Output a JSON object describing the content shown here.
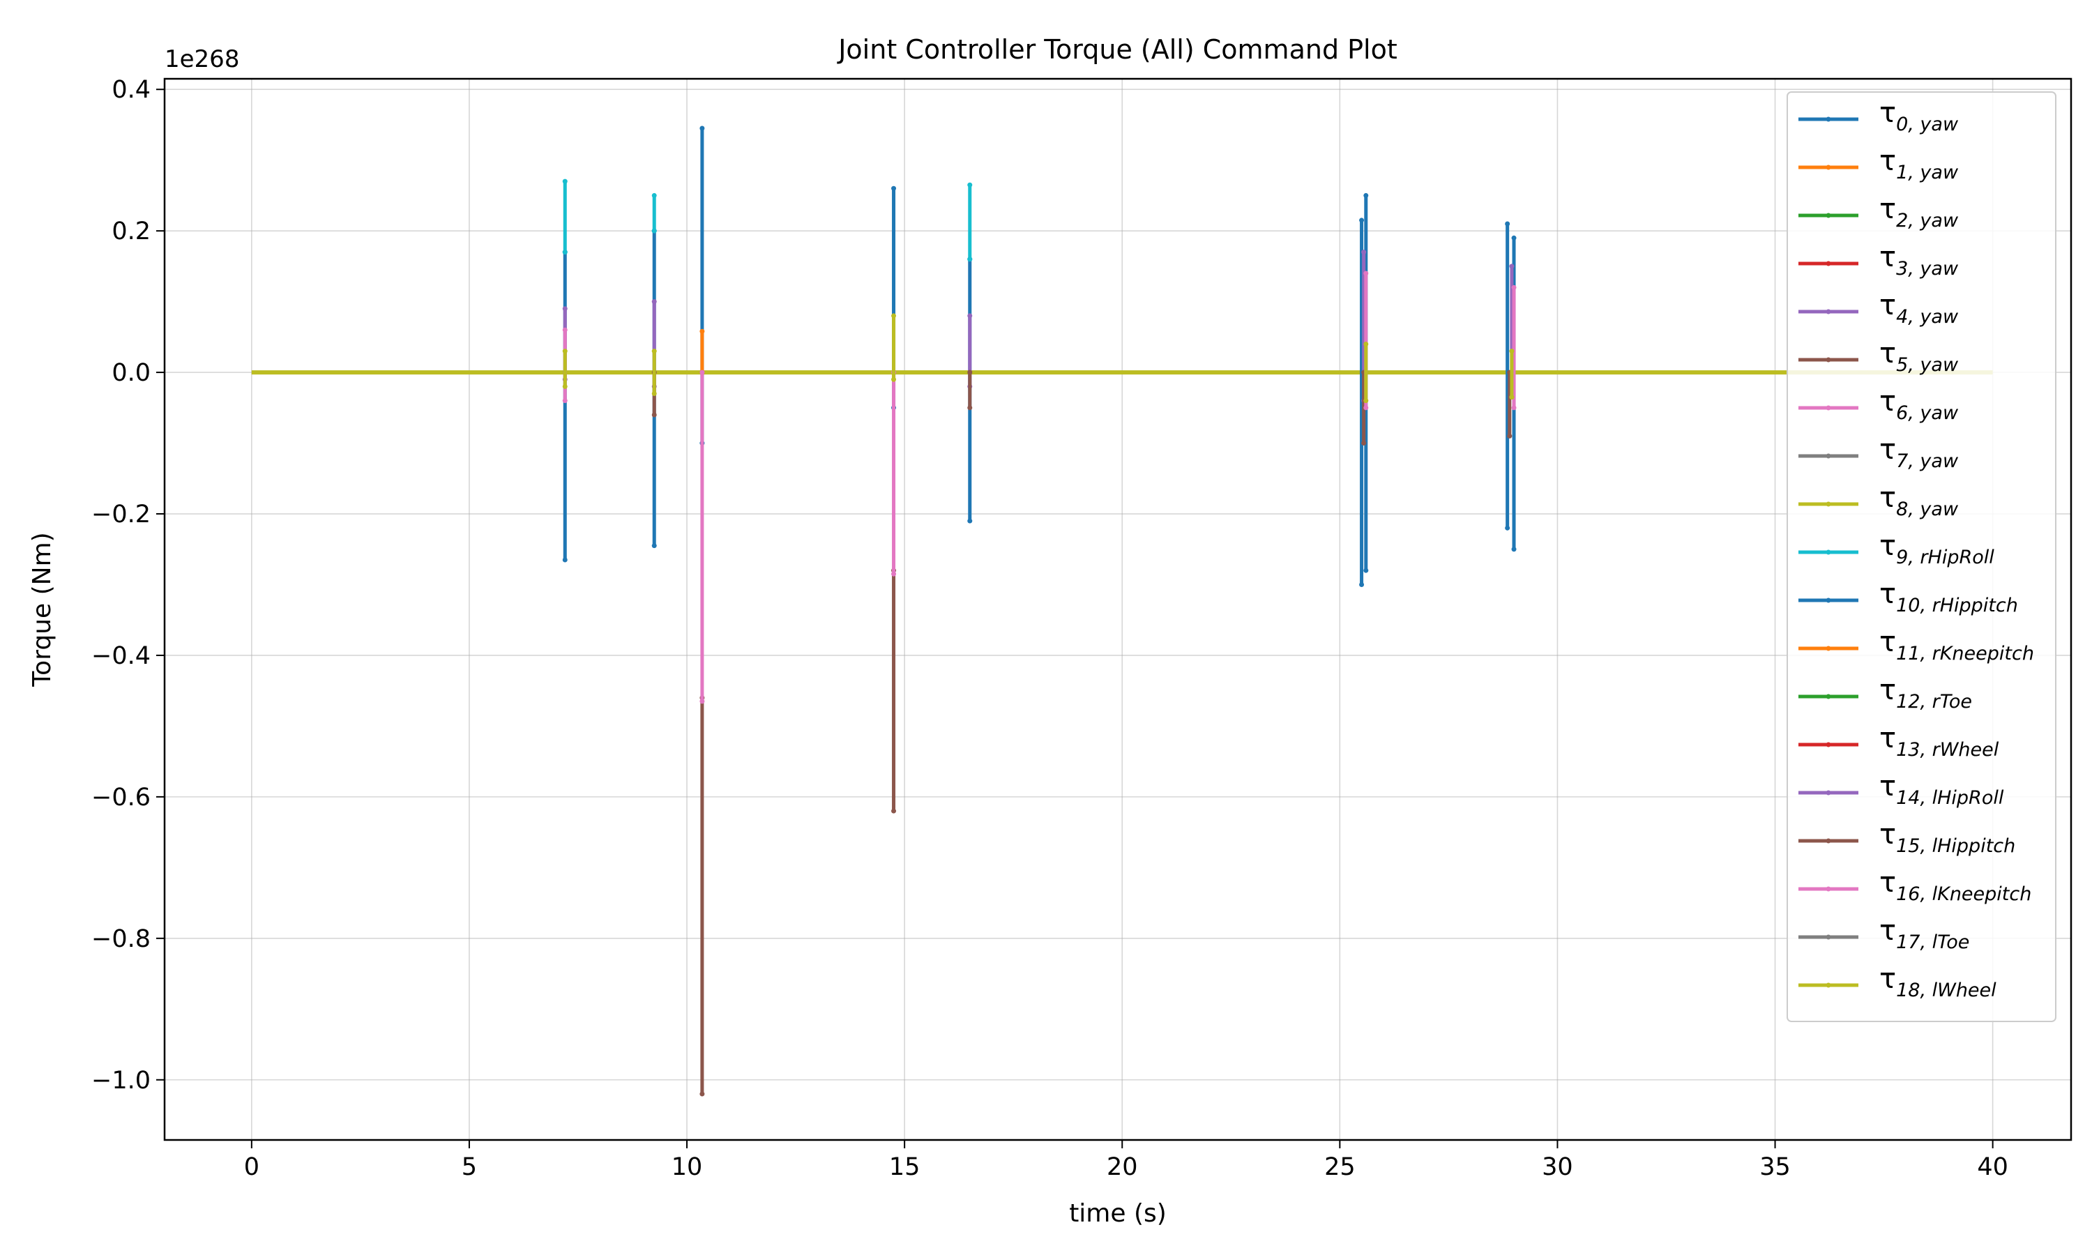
{
  "chart_data": {
    "type": "line",
    "title": "Joint Controller Torque (All) Command Plot",
    "xlabel": "time (s)",
    "ylabel": "Torque (Nm)",
    "offset_label": "1e268",
    "xlim": [
      -2.0,
      41.8
    ],
    "ylim": [
      -1.085,
      0.415
    ],
    "x_ticks": [
      0,
      5,
      10,
      15,
      20,
      25,
      30,
      35,
      40
    ],
    "x_tick_labels": [
      "0",
      "5",
      "10",
      "15",
      "20",
      "25",
      "30",
      "35",
      "40"
    ],
    "y_ticks": [
      0.4,
      0.2,
      0.0,
      -0.2,
      -0.4,
      -0.6,
      -0.8,
      -1.0
    ],
    "y_tick_labels": [
      "0.4",
      "0.2",
      "0.0",
      "−0.2",
      "−0.4",
      "−0.6",
      "−0.8",
      "−1.0"
    ],
    "grid": true,
    "legend_position": "upper right",
    "baseline": {
      "x": [
        0,
        40
      ],
      "y": 0
    },
    "series": [
      {
        "name": "τ0,yaw",
        "base": "τ",
        "sub": "0, yaw",
        "color": "#1f77b4",
        "spikes": [
          [
            7.2,
            -0.265,
            0.17
          ],
          [
            9.25,
            -0.245,
            0.2
          ],
          [
            10.35,
            -0.1,
            0.345
          ],
          [
            14.75,
            -0.05,
            0.26
          ],
          [
            16.5,
            -0.21,
            0.16
          ],
          [
            25.5,
            -0.3,
            0.215
          ],
          [
            25.6,
            -0.28,
            0.25
          ],
          [
            28.85,
            -0.22,
            0.21
          ],
          [
            29.0,
            -0.25,
            0.19
          ]
        ]
      },
      {
        "name": "τ1,yaw",
        "base": "τ",
        "sub": "1, yaw",
        "color": "#ff7f0e",
        "spikes": [
          [
            10.35,
            0.0,
            0.058
          ]
        ]
      },
      {
        "name": "τ2,yaw",
        "base": "τ",
        "sub": "2, yaw",
        "color": "#2ca02c",
        "spikes": []
      },
      {
        "name": "τ3,yaw",
        "base": "τ",
        "sub": "3, yaw",
        "color": "#d62728",
        "spikes": []
      },
      {
        "name": "τ4,yaw",
        "base": "τ",
        "sub": "4, yaw",
        "color": "#9467bd",
        "spikes": [
          [
            7.2,
            -0.01,
            0.09
          ],
          [
            9.25,
            -0.02,
            0.1
          ],
          [
            16.5,
            -0.02,
            0.08
          ],
          [
            25.55,
            -0.04,
            0.17
          ],
          [
            28.95,
            -0.03,
            0.15
          ]
        ]
      },
      {
        "name": "τ5,yaw",
        "base": "τ",
        "sub": "5, yaw",
        "color": "#8c564b",
        "spikes": [
          [
            9.25,
            -0.06,
            0.0
          ],
          [
            16.5,
            -0.05,
            0.0
          ],
          [
            25.55,
            -0.1,
            0.0
          ],
          [
            28.9,
            -0.09,
            0.0
          ]
        ]
      },
      {
        "name": "τ6,yaw",
        "base": "τ",
        "sub": "6, yaw",
        "color": "#e377c2",
        "spikes": [
          [
            7.2,
            -0.04,
            0.06
          ],
          [
            25.6,
            -0.05,
            0.14
          ],
          [
            29.0,
            -0.05,
            0.12
          ]
        ]
      },
      {
        "name": "τ7,yaw",
        "base": "τ",
        "sub": "7, yaw",
        "color": "#7f7f7f",
        "spikes": []
      },
      {
        "name": "τ8,yaw",
        "base": "τ",
        "sub": "8, yaw",
        "color": "#bcbd22",
        "spikes": [
          [
            7.2,
            -0.02,
            0.03
          ],
          [
            9.25,
            -0.03,
            0.03
          ],
          [
            25.6,
            -0.04,
            0.04
          ],
          [
            28.95,
            -0.035,
            0.03
          ]
        ]
      },
      {
        "name": "τ9,rHipRoll",
        "base": "τ",
        "sub": "9, rHipRoll",
        "color": "#17becf",
        "spikes": [
          [
            7.2,
            0.17,
            0.27
          ],
          [
            9.25,
            0.2,
            0.25
          ],
          [
            16.5,
            0.16,
            0.265
          ]
        ]
      },
      {
        "name": "τ10,rHippitch",
        "base": "τ",
        "sub": "10, rHippitch",
        "color": "#1f77b4",
        "spikes": []
      },
      {
        "name": "τ11,rKneepitch",
        "base": "τ",
        "sub": "11, rKneepitch",
        "color": "#ff7f0e",
        "spikes": []
      },
      {
        "name": "τ12,rToe",
        "base": "τ",
        "sub": "12, rToe",
        "color": "#2ca02c",
        "spikes": []
      },
      {
        "name": "τ13,rWheel",
        "base": "τ",
        "sub": "13, rWheel",
        "color": "#d62728",
        "spikes": []
      },
      {
        "name": "τ14,lHipRoll",
        "base": "τ",
        "sub": "14, lHipRoll",
        "color": "#9467bd",
        "spikes": []
      },
      {
        "name": "τ15,lHippitch",
        "base": "τ",
        "sub": "15, lHippitch",
        "color": "#8c564b",
        "spikes": [
          [
            10.35,
            -1.02,
            -0.46
          ],
          [
            14.75,
            -0.62,
            -0.28
          ]
        ]
      },
      {
        "name": "τ16,lKneepitch",
        "base": "τ",
        "sub": "16, lKneepitch",
        "color": "#e377c2",
        "spikes": [
          [
            10.35,
            -0.465,
            0.0
          ],
          [
            14.75,
            -0.285,
            0.0
          ]
        ]
      },
      {
        "name": "τ17,lToe",
        "base": "τ",
        "sub": "17, lToe",
        "color": "#7f7f7f",
        "spikes": []
      },
      {
        "name": "τ18,lWheel",
        "base": "τ",
        "sub": "18, lWheel",
        "color": "#bcbd22",
        "spikes": [
          [
            14.75,
            -0.01,
            0.08
          ]
        ]
      }
    ]
  }
}
